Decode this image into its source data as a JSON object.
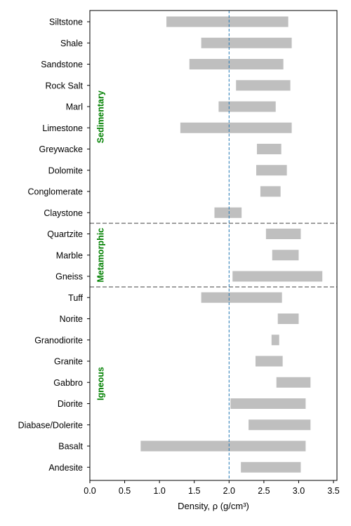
{
  "chart_data": {
    "type": "bar",
    "orientation": "horizontal-range",
    "xlabel": "Density, ρ (g/cm³)",
    "xlim": [
      0.0,
      3.55
    ],
    "x_ticks": [
      "0.0",
      "0.5",
      "1.0",
      "1.5",
      "2.0",
      "2.5",
      "3.0",
      "3.5"
    ],
    "bar_color": "#bfbfbf",
    "reference_line": {
      "x": 2.0,
      "color": "#1f77b4",
      "style": "dashed"
    },
    "group_color": "#008000",
    "groups": [
      {
        "name": "Sedimentary",
        "rows": [
          "Siltstone",
          "Shale",
          "Sandstone",
          "Rock Salt",
          "Marl",
          "Limestone",
          "Greywacke",
          "Dolomite",
          "Conglomerate",
          "Claystone"
        ]
      },
      {
        "name": "Metamorphic",
        "rows": [
          "Quartzite",
          "Marble",
          "Gneiss"
        ]
      },
      {
        "name": "Igneous",
        "rows": [
          "Tuff",
          "Norite",
          "Granodiorite",
          "Granite",
          "Gabbro",
          "Diorite",
          "Diabase/Dolerite",
          "Basalt",
          "Andesite"
        ]
      }
    ],
    "rows": [
      {
        "name": "Siltstone",
        "min": 1.1,
        "max": 2.85
      },
      {
        "name": "Shale",
        "min": 1.6,
        "max": 2.9
      },
      {
        "name": "Sandstone",
        "min": 1.43,
        "max": 2.78
      },
      {
        "name": "Rock Salt",
        "min": 2.1,
        "max": 2.88
      },
      {
        "name": "Marl",
        "min": 1.85,
        "max": 2.67
      },
      {
        "name": "Limestone",
        "min": 1.3,
        "max": 2.9
      },
      {
        "name": "Greywacke",
        "min": 2.4,
        "max": 2.75
      },
      {
        "name": "Dolomite",
        "min": 2.39,
        "max": 2.83
      },
      {
        "name": "Conglomerate",
        "min": 2.45,
        "max": 2.74
      },
      {
        "name": "Claystone",
        "min": 1.79,
        "max": 2.18
      },
      {
        "name": "Quartzite",
        "min": 2.53,
        "max": 3.03
      },
      {
        "name": "Marble",
        "min": 2.62,
        "max": 3.0
      },
      {
        "name": "Gneiss",
        "min": 2.05,
        "max": 3.34
      },
      {
        "name": "Tuff",
        "min": 1.6,
        "max": 2.76
      },
      {
        "name": "Norite",
        "min": 2.7,
        "max": 3.0
      },
      {
        "name": "Granodiorite",
        "min": 2.61,
        "max": 2.72
      },
      {
        "name": "Granite",
        "min": 2.38,
        "max": 2.77
      },
      {
        "name": "Gabbro",
        "min": 2.68,
        "max": 3.17
      },
      {
        "name": "Diorite",
        "min": 2.02,
        "max": 3.1
      },
      {
        "name": "Diabase/Dolerite",
        "min": 2.28,
        "max": 3.17
      },
      {
        "name": "Basalt",
        "min": 0.73,
        "max": 3.1
      },
      {
        "name": "Andesite",
        "min": 2.17,
        "max": 3.03
      }
    ]
  }
}
